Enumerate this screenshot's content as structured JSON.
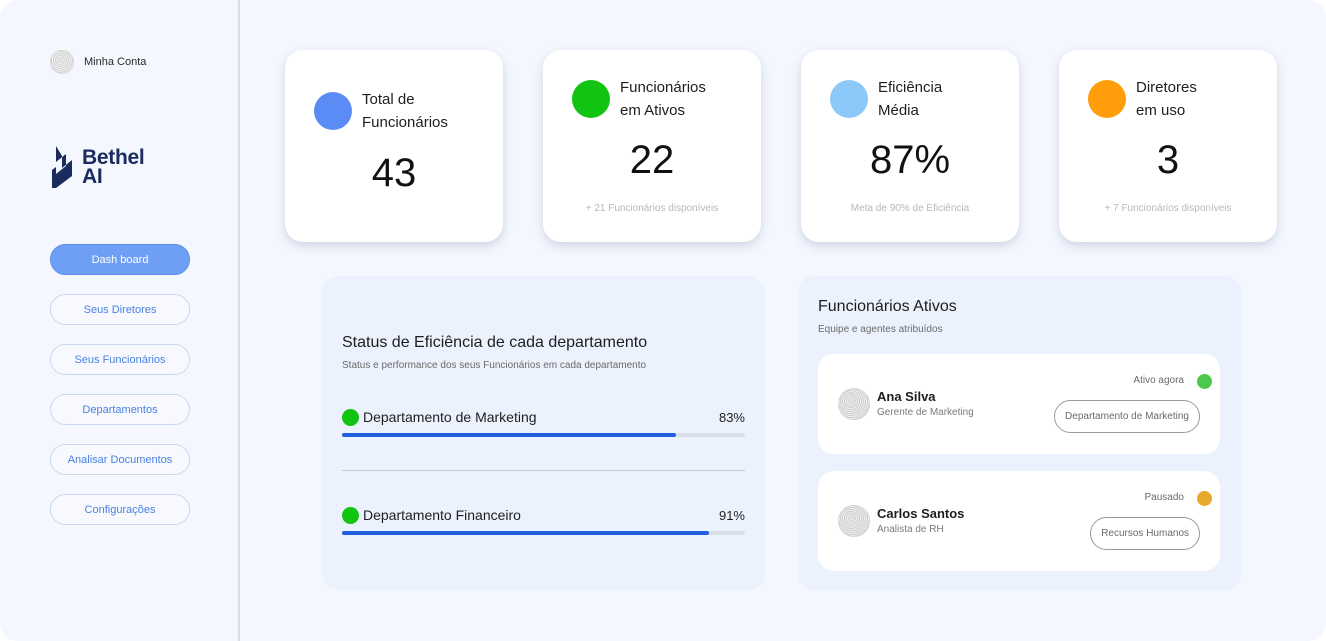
{
  "account": {
    "label": "Minha Conta"
  },
  "brand": {
    "name_line1": "Bethel",
    "name_line2": "AI",
    "color": "#1a2b5e"
  },
  "nav": {
    "items": [
      {
        "label": "Dash board",
        "active": true
      },
      {
        "label": "Seus Diretores"
      },
      {
        "label": "Seus Funcionários"
      },
      {
        "label": "Departamentos"
      },
      {
        "label": "Analisar Documentos"
      },
      {
        "label": "Configurações"
      }
    ]
  },
  "kpis": [
    {
      "title_line1": "Total de",
      "title_line2": "Funcionários",
      "value": "43",
      "sub": "",
      "color": "#5b8cf5"
    },
    {
      "title_line1": "Funcionários",
      "title_line2": "em Ativos",
      "value": "22",
      "sub": "+ 21 Funcionários disponíveis",
      "color": "#11c411"
    },
    {
      "title_line1": "Eficiência",
      "title_line2": "Média",
      "value": "87%",
      "sub": "Meta de 90% de Eficiência",
      "color": "#8cc8fa"
    },
    {
      "title_line1": "Diretores",
      "title_line2": "em uso",
      "value": "3",
      "sub": "+ 7 Funcionários disponíveis",
      "color": "#ff9d0a"
    }
  ],
  "efficiency": {
    "title": "Status de Eficiência de cada departamento",
    "subtitle": "Status e performance dos seus Funcionários em cada departamento",
    "departments": [
      {
        "name": "Departamento de Marketing",
        "percent_label": "83%",
        "percent": 83,
        "status_color": "#11c411"
      },
      {
        "name": "Departamento Financeiro",
        "percent_label": "91%",
        "percent": 91,
        "status_color": "#11c411"
      }
    ]
  },
  "active_employees": {
    "title": "Funcionários Ativos",
    "subtitle": "Equipe e agentes atribuídos",
    "employees": [
      {
        "name": "Ana Silva",
        "role": "Gerente de Marketing",
        "status": "Ativo agora",
        "status_color": "#4cc94c",
        "department": "Departamento de Marketing"
      },
      {
        "name": "Carlos Santos",
        "role": "Analista de RH",
        "status": "Pausado",
        "status_color": "#e8a82c",
        "department": "Recursos Humanos"
      }
    ]
  }
}
